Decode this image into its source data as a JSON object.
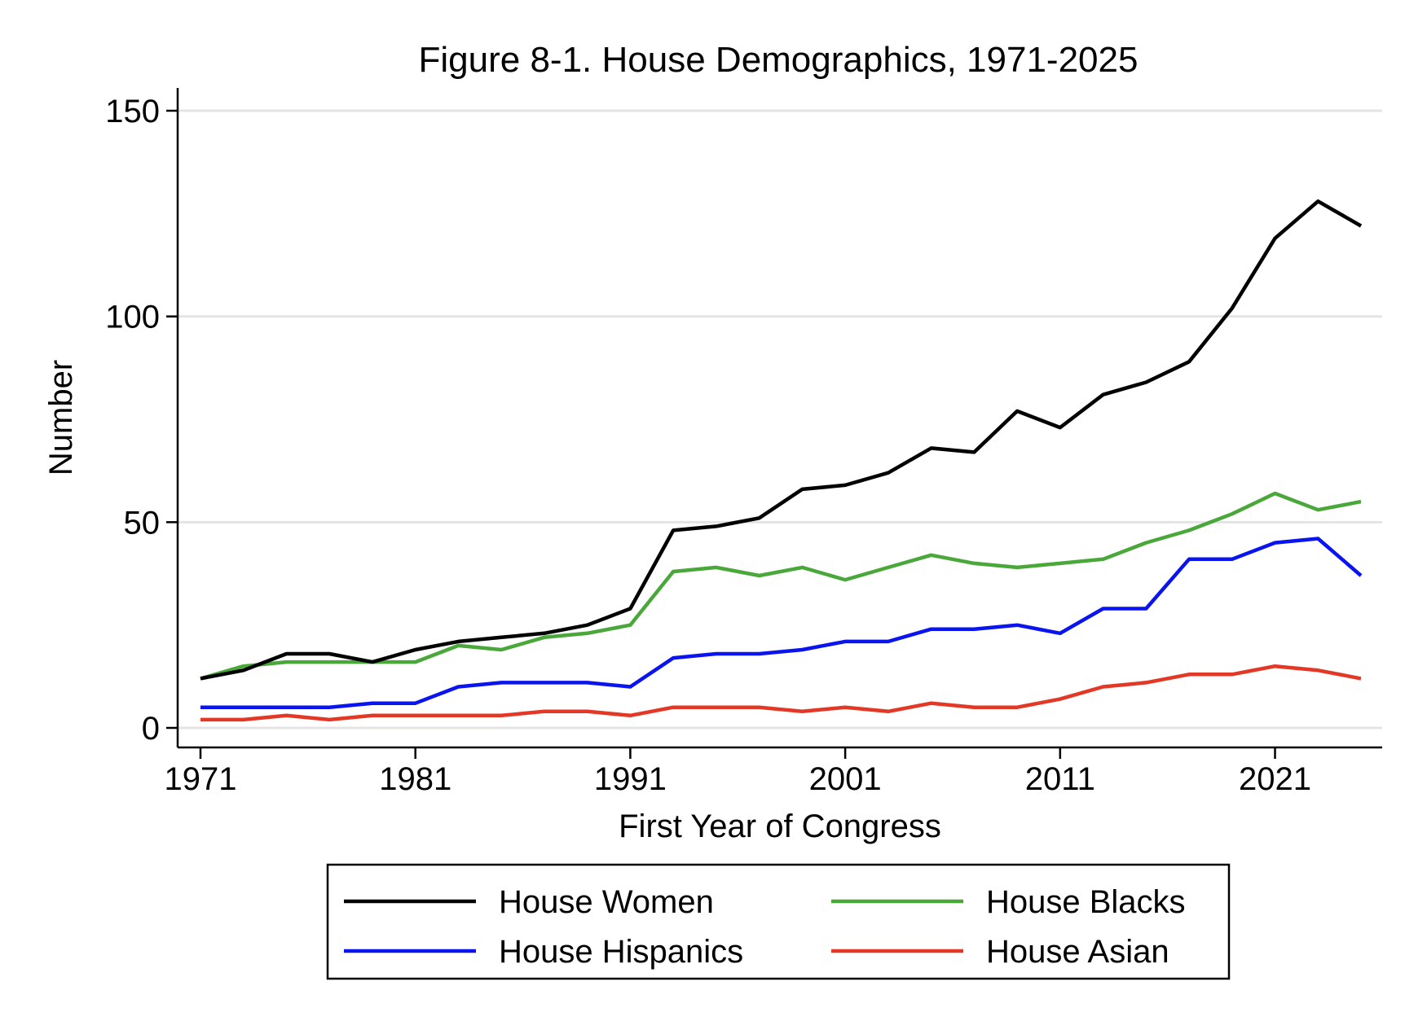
{
  "chart_data": {
    "type": "line",
    "title": "Figure 8-1. House Demographics, 1971-2025",
    "xlabel": "First Year of Congress",
    "ylabel": "Number",
    "xlim": [
      1970,
      2026
    ],
    "ylim": [
      -5,
      157
    ],
    "xticks": [
      "1971",
      "1981",
      "1991",
      "2001",
      "2011",
      "2021"
    ],
    "yticks": [
      "0",
      "50",
      "100",
      "150"
    ],
    "grid": "horizontal",
    "legend_position": "bottom",
    "x": [
      1971,
      1973,
      1975,
      1977,
      1979,
      1981,
      1983,
      1985,
      1987,
      1989,
      1991,
      1993,
      1995,
      1997,
      1999,
      2001,
      2003,
      2005,
      2007,
      2009,
      2011,
      2013,
      2015,
      2017,
      2019,
      2021,
      2023,
      2025
    ],
    "series": [
      {
        "name": "House Women",
        "color": "#000000",
        "values": [
          12,
          14,
          18,
          18,
          16,
          19,
          21,
          22,
          23,
          25,
          29,
          48,
          49,
          51,
          58,
          59,
          62,
          68,
          67,
          77,
          73,
          81,
          84,
          89,
          102,
          119,
          128,
          122
        ]
      },
      {
        "name": "House Blacks",
        "color": "#4aa73a",
        "values": [
          12,
          15,
          16,
          16,
          16,
          16,
          20,
          19,
          22,
          23,
          25,
          38,
          39,
          37,
          39,
          36,
          39,
          42,
          40,
          39,
          40,
          41,
          45,
          48,
          52,
          57,
          53,
          55
        ]
      },
      {
        "name": "House Hispanics",
        "color": "#0a14ee",
        "values": [
          5,
          5,
          5,
          5,
          6,
          6,
          10,
          11,
          11,
          11,
          10,
          17,
          18,
          18,
          19,
          21,
          21,
          24,
          24,
          25,
          23,
          29,
          29,
          41,
          41,
          45,
          46,
          37
        ]
      },
      {
        "name": "House Asian",
        "color": "#e43826",
        "values": [
          2,
          2,
          3,
          2,
          3,
          3,
          3,
          3,
          4,
          4,
          3,
          5,
          5,
          5,
          4,
          5,
          4,
          6,
          5,
          5,
          7,
          10,
          11,
          13,
          13,
          15,
          14,
          12
        ]
      }
    ]
  }
}
